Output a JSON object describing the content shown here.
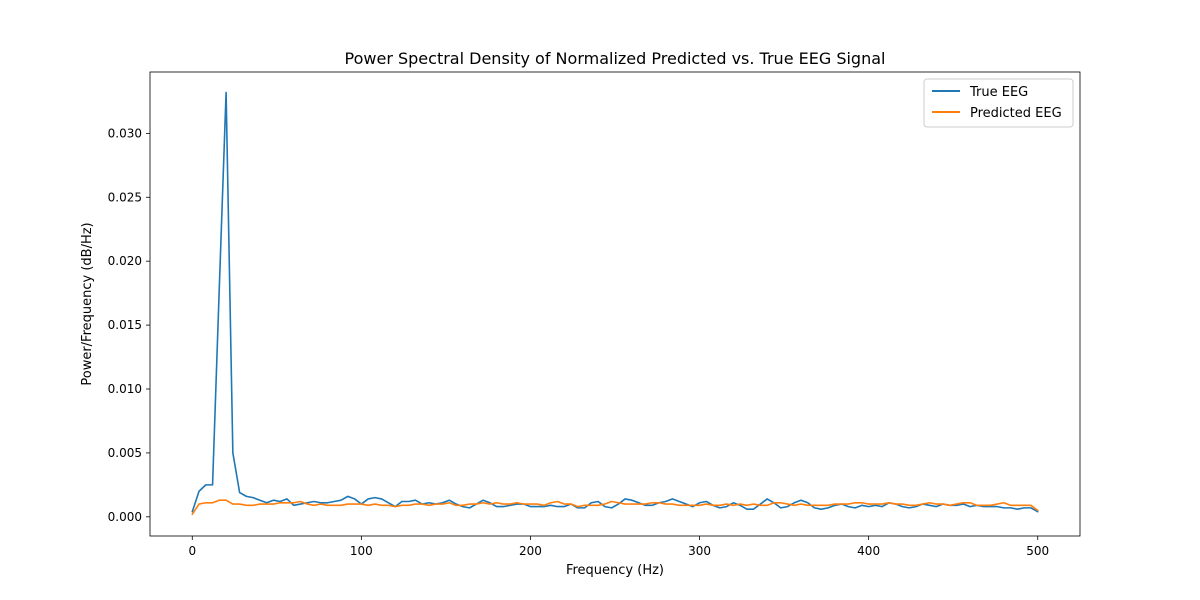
{
  "chart_data": {
    "type": "line",
    "title": "Power Spectral Density of Normalized Predicted vs. True EEG Signal",
    "xlabel": "Frequency (Hz)",
    "ylabel": "Power/Frequency (dB/Hz)",
    "xlim": [
      -25,
      525
    ],
    "ylim": [
      -0.0015,
      0.0348
    ],
    "xticks": [
      0,
      100,
      200,
      300,
      400,
      500
    ],
    "yticks": [
      0.0,
      0.005,
      0.01,
      0.015,
      0.02,
      0.025,
      0.03
    ],
    "xtick_labels": [
      "0",
      "100",
      "200",
      "300",
      "400",
      "500"
    ],
    "ytick_labels": [
      "0.000",
      "0.005",
      "0.010",
      "0.015",
      "0.020",
      "0.025",
      "0.030"
    ],
    "grid": false,
    "legend_position": "upper right",
    "series": [
      {
        "name": "True EEG",
        "color": "#1f77b4",
        "x": [
          0,
          4,
          8,
          12,
          16,
          20,
          24,
          28,
          32,
          36,
          40,
          44,
          48,
          52,
          56,
          60,
          64,
          68,
          72,
          76,
          80,
          84,
          88,
          92,
          96,
          100,
          104,
          108,
          112,
          116,
          120,
          124,
          128,
          132,
          136,
          140,
          144,
          148,
          152,
          156,
          160,
          164,
          168,
          172,
          176,
          180,
          184,
          188,
          192,
          196,
          200,
          204,
          208,
          212,
          216,
          220,
          224,
          228,
          232,
          236,
          240,
          244,
          248,
          252,
          256,
          260,
          264,
          268,
          272,
          276,
          280,
          284,
          288,
          292,
          296,
          300,
          304,
          308,
          312,
          316,
          320,
          324,
          328,
          332,
          336,
          340,
          344,
          348,
          352,
          356,
          360,
          364,
          368,
          372,
          376,
          380,
          384,
          388,
          392,
          396,
          400,
          404,
          408,
          412,
          416,
          420,
          424,
          428,
          432,
          436,
          440,
          444,
          448,
          452,
          456,
          460,
          464,
          468,
          472,
          476,
          480,
          484,
          488,
          492,
          496,
          500
        ],
        "y": [
          0.0004,
          0.002,
          0.0025,
          0.0025,
          0.018,
          0.0332,
          0.005,
          0.0019,
          0.0016,
          0.0015,
          0.0013,
          0.0011,
          0.0013,
          0.0012,
          0.0014,
          0.0009,
          0.001,
          0.0011,
          0.0012,
          0.0011,
          0.0011,
          0.0012,
          0.0013,
          0.0016,
          0.0014,
          0.001,
          0.0014,
          0.0015,
          0.0014,
          0.0011,
          0.0008,
          0.0012,
          0.0012,
          0.0013,
          0.001,
          0.0011,
          0.001,
          0.0011,
          0.0013,
          0.001,
          0.0008,
          0.0007,
          0.001,
          0.0013,
          0.0011,
          0.0008,
          0.0008,
          0.0009,
          0.001,
          0.001,
          0.0008,
          0.0008,
          0.0008,
          0.0009,
          0.0008,
          0.0008,
          0.001,
          0.0007,
          0.0007,
          0.0011,
          0.0012,
          0.0008,
          0.0007,
          0.001,
          0.0014,
          0.0013,
          0.0011,
          0.0009,
          0.0009,
          0.0011,
          0.0012,
          0.0014,
          0.0012,
          0.001,
          0.0008,
          0.0011,
          0.0012,
          0.0009,
          0.0007,
          0.0008,
          0.0011,
          0.0009,
          0.0006,
          0.0006,
          0.001,
          0.0014,
          0.0011,
          0.0007,
          0.0008,
          0.0011,
          0.0013,
          0.0011,
          0.0007,
          0.0006,
          0.0007,
          0.0009,
          0.001,
          0.0008,
          0.0007,
          0.0009,
          0.0008,
          0.0009,
          0.0008,
          0.0011,
          0.001,
          0.0008,
          0.0007,
          0.0008,
          0.001,
          0.0009,
          0.0008,
          0.001,
          0.0009,
          0.0009,
          0.001,
          0.0008,
          0.0009,
          0.0008,
          0.0008,
          0.0008,
          0.0007,
          0.0007,
          0.0006,
          0.0007,
          0.0007,
          0.0004
        ]
      },
      {
        "name": "Predicted EEG",
        "color": "#ff7f0e",
        "x": [
          0,
          4,
          8,
          12,
          16,
          20,
          24,
          28,
          32,
          36,
          40,
          44,
          48,
          52,
          56,
          60,
          64,
          68,
          72,
          76,
          80,
          84,
          88,
          92,
          96,
          100,
          104,
          108,
          112,
          116,
          120,
          124,
          128,
          132,
          136,
          140,
          144,
          148,
          152,
          156,
          160,
          164,
          168,
          172,
          176,
          180,
          184,
          188,
          192,
          196,
          200,
          204,
          208,
          212,
          216,
          220,
          224,
          228,
          232,
          236,
          240,
          244,
          248,
          252,
          256,
          260,
          264,
          268,
          272,
          276,
          280,
          284,
          288,
          292,
          296,
          300,
          304,
          308,
          312,
          316,
          320,
          324,
          328,
          332,
          336,
          340,
          344,
          348,
          352,
          356,
          360,
          364,
          368,
          372,
          376,
          380,
          384,
          388,
          392,
          396,
          400,
          404,
          408,
          412,
          416,
          420,
          424,
          428,
          432,
          436,
          440,
          444,
          448,
          452,
          456,
          460,
          464,
          468,
          472,
          476,
          480,
          484,
          488,
          492,
          496,
          500
        ],
        "y": [
          0.0002,
          0.001,
          0.0011,
          0.0011,
          0.0013,
          0.0013,
          0.001,
          0.001,
          0.0009,
          0.0009,
          0.001,
          0.001,
          0.001,
          0.0011,
          0.0011,
          0.0011,
          0.0012,
          0.001,
          0.0009,
          0.001,
          0.0009,
          0.0009,
          0.0009,
          0.001,
          0.001,
          0.001,
          0.0009,
          0.001,
          0.0009,
          0.0009,
          0.0008,
          0.0009,
          0.0009,
          0.001,
          0.001,
          0.0009,
          0.001,
          0.001,
          0.0011,
          0.0009,
          0.0009,
          0.001,
          0.001,
          0.0011,
          0.001,
          0.0011,
          0.001,
          0.001,
          0.0011,
          0.001,
          0.001,
          0.001,
          0.0009,
          0.0011,
          0.0012,
          0.001,
          0.001,
          0.0008,
          0.0009,
          0.0009,
          0.0009,
          0.001,
          0.0012,
          0.0011,
          0.001,
          0.001,
          0.001,
          0.001,
          0.0011,
          0.0011,
          0.001,
          0.001,
          0.0009,
          0.0009,
          0.0009,
          0.0009,
          0.001,
          0.0009,
          0.0009,
          0.001,
          0.0009,
          0.001,
          0.0009,
          0.001,
          0.0009,
          0.0009,
          0.0011,
          0.0011,
          0.001,
          0.0009,
          0.001,
          0.0009,
          0.0009,
          0.0009,
          0.0009,
          0.001,
          0.001,
          0.001,
          0.0011,
          0.0011,
          0.001,
          0.001,
          0.001,
          0.0011,
          0.001,
          0.001,
          0.0009,
          0.0009,
          0.001,
          0.0011,
          0.001,
          0.001,
          0.0009,
          0.001,
          0.0011,
          0.0011,
          0.0009,
          0.0009,
          0.0009,
          0.001,
          0.0011,
          0.0009,
          0.0009,
          0.0009,
          0.0009,
          0.0005
        ]
      }
    ]
  }
}
